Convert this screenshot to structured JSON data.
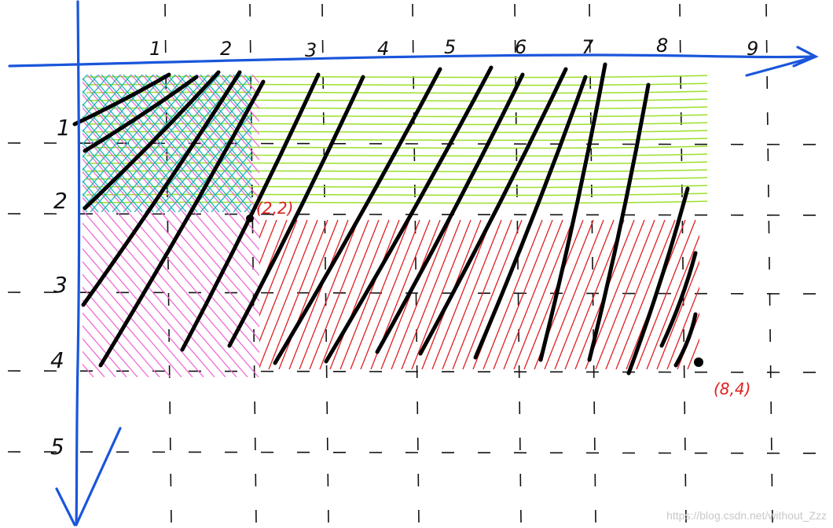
{
  "diagram": {
    "x_ticks": [
      "1",
      "2",
      "3",
      "4",
      "5",
      "6",
      "7",
      "8",
      "9"
    ],
    "y_ticks": [
      "1",
      "2",
      "3",
      "4",
      "5"
    ],
    "point_a_label": "(2,2)",
    "point_b_label": "(8,4)",
    "colors": {
      "axis": "#1a56db",
      "grid": "#111111",
      "green_hatch": "#9be02a",
      "cyan_hatch": "#20b7b7",
      "pink_hatch": "#f06ad8",
      "red_hatch": "#e02020",
      "black_hatch": "#000000"
    }
  },
  "watermark": "https://blog.csdn.net/without_Zzz"
}
